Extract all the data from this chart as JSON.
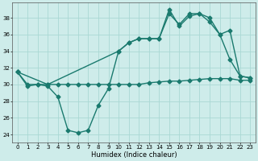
{
  "xlabel": "Humidex (Indice chaleur)",
  "bg_color": "#ceecea",
  "grid_color": "#aad8d4",
  "line_color": "#1a7a6e",
  "xlim": [
    -0.5,
    23.5
  ],
  "ylim": [
    23.0,
    39.8
  ],
  "yticks": [
    24,
    26,
    28,
    30,
    32,
    34,
    36,
    38
  ],
  "xticks": [
    0,
    1,
    2,
    3,
    4,
    5,
    6,
    7,
    8,
    9,
    10,
    11,
    12,
    13,
    14,
    15,
    16,
    17,
    18,
    19,
    20,
    21,
    22,
    23
  ],
  "line1_x": [
    0,
    1,
    2,
    3,
    4,
    5,
    6,
    7,
    8,
    9,
    10,
    11,
    12,
    13,
    14,
    15,
    16,
    17,
    18,
    19,
    20,
    21,
    22,
    23
  ],
  "line1_y": [
    31.5,
    30.0,
    30.0,
    30.0,
    30.0,
    30.0,
    30.0,
    30.0,
    30.0,
    30.0,
    30.0,
    30.0,
    30.0,
    30.2,
    30.3,
    30.4,
    30.4,
    30.5,
    30.6,
    30.7,
    30.7,
    30.7,
    30.5,
    30.5
  ],
  "line2_x": [
    0,
    1,
    2,
    3,
    4,
    5,
    6,
    7,
    8,
    9,
    10,
    11,
    12,
    13,
    14,
    15,
    16,
    17,
    18,
    19,
    20,
    21,
    22,
    23
  ],
  "line2_y": [
    31.5,
    29.8,
    30.0,
    29.8,
    28.5,
    24.5,
    24.2,
    24.5,
    27.5,
    29.5,
    34.0,
    35.0,
    35.5,
    35.5,
    35.5,
    39.0,
    37.0,
    38.2,
    38.5,
    37.5,
    36.0,
    33.0,
    31.0,
    30.8
  ],
  "line3_x": [
    0,
    3,
    10,
    11,
    12,
    13,
    14,
    15,
    16,
    17,
    18,
    19,
    20,
    21,
    22,
    23
  ],
  "line3_y": [
    31.5,
    30.0,
    34.0,
    35.0,
    35.5,
    35.5,
    35.5,
    38.5,
    37.2,
    38.5,
    38.5,
    38.0,
    36.0,
    36.5,
    31.0,
    30.8
  ],
  "markersize": 2.5,
  "linewidth": 1.0
}
